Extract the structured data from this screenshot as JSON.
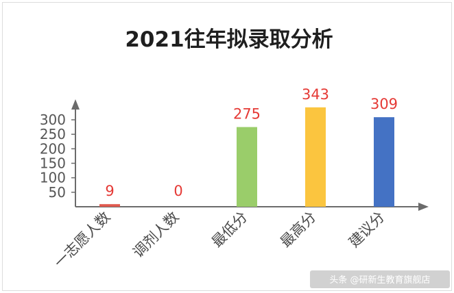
{
  "chart_data": {
    "type": "bar",
    "title": "2021往年拟录取分析",
    "xlabel": "",
    "ylabel": "",
    "categories": [
      "一志愿人数",
      "调剂人数",
      "最低分",
      "最高分",
      "建议分"
    ],
    "values": [
      9,
      0,
      275,
      343,
      309
    ],
    "data_labels": [
      "9",
      "0",
      "275",
      "343",
      "309"
    ],
    "colors": [
      "#e05a4f",
      "#e05a4f",
      "#9acd6a",
      "#fbc53f",
      "#4472c4"
    ],
    "y_ticks": [
      50,
      100,
      150,
      200,
      250,
      300
    ],
    "y_tick_labels": [
      "50",
      "100",
      "150",
      "200",
      "250",
      "300"
    ],
    "ylim": [
      0,
      360
    ],
    "grid": false,
    "legend": "none"
  },
  "watermark": "头条 @研新生教育旗舰店",
  "colors": {
    "axis": "#6b6b6b",
    "label_red": "#e53935"
  }
}
